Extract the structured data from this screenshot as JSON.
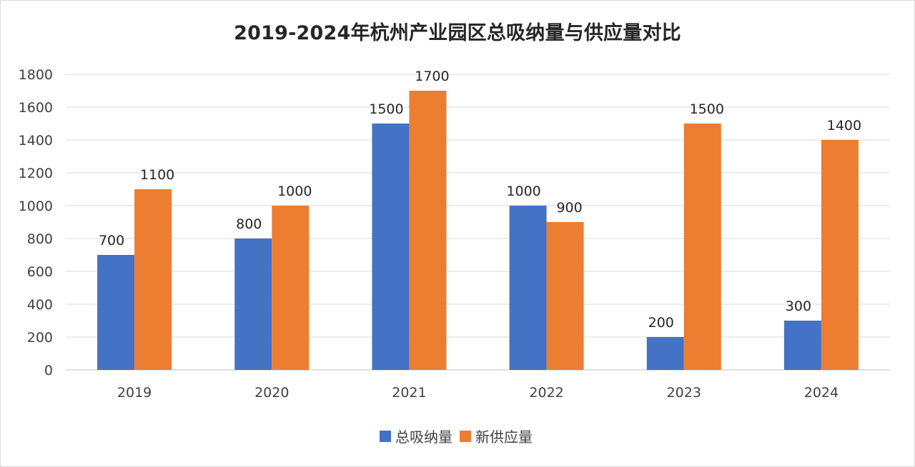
{
  "chart_data": {
    "type": "bar",
    "title": "2019-2024年杭州产业园区总吸纳量与供应量对比",
    "categories": [
      "2019",
      "2020",
      "2021",
      "2022",
      "2023",
      "2024"
    ],
    "series": [
      {
        "name": "总吸纳量",
        "color": "#4472C4",
        "values": [
          700,
          800,
          1500,
          1000,
          200,
          300
        ]
      },
      {
        "name": "新供应量",
        "color": "#ED7D31",
        "values": [
          1100,
          1000,
          1700,
          900,
          1500,
          1400
        ]
      }
    ],
    "ylim": [
      0,
      1800
    ],
    "yticks": [
      "0",
      "200",
      "400",
      "600",
      "800",
      "1000",
      "1200",
      "1400",
      "1600",
      "1800"
    ],
    "grid": true,
    "data_labels": true,
    "legend_position": "bottom",
    "xlabel": "",
    "ylabel": ""
  }
}
